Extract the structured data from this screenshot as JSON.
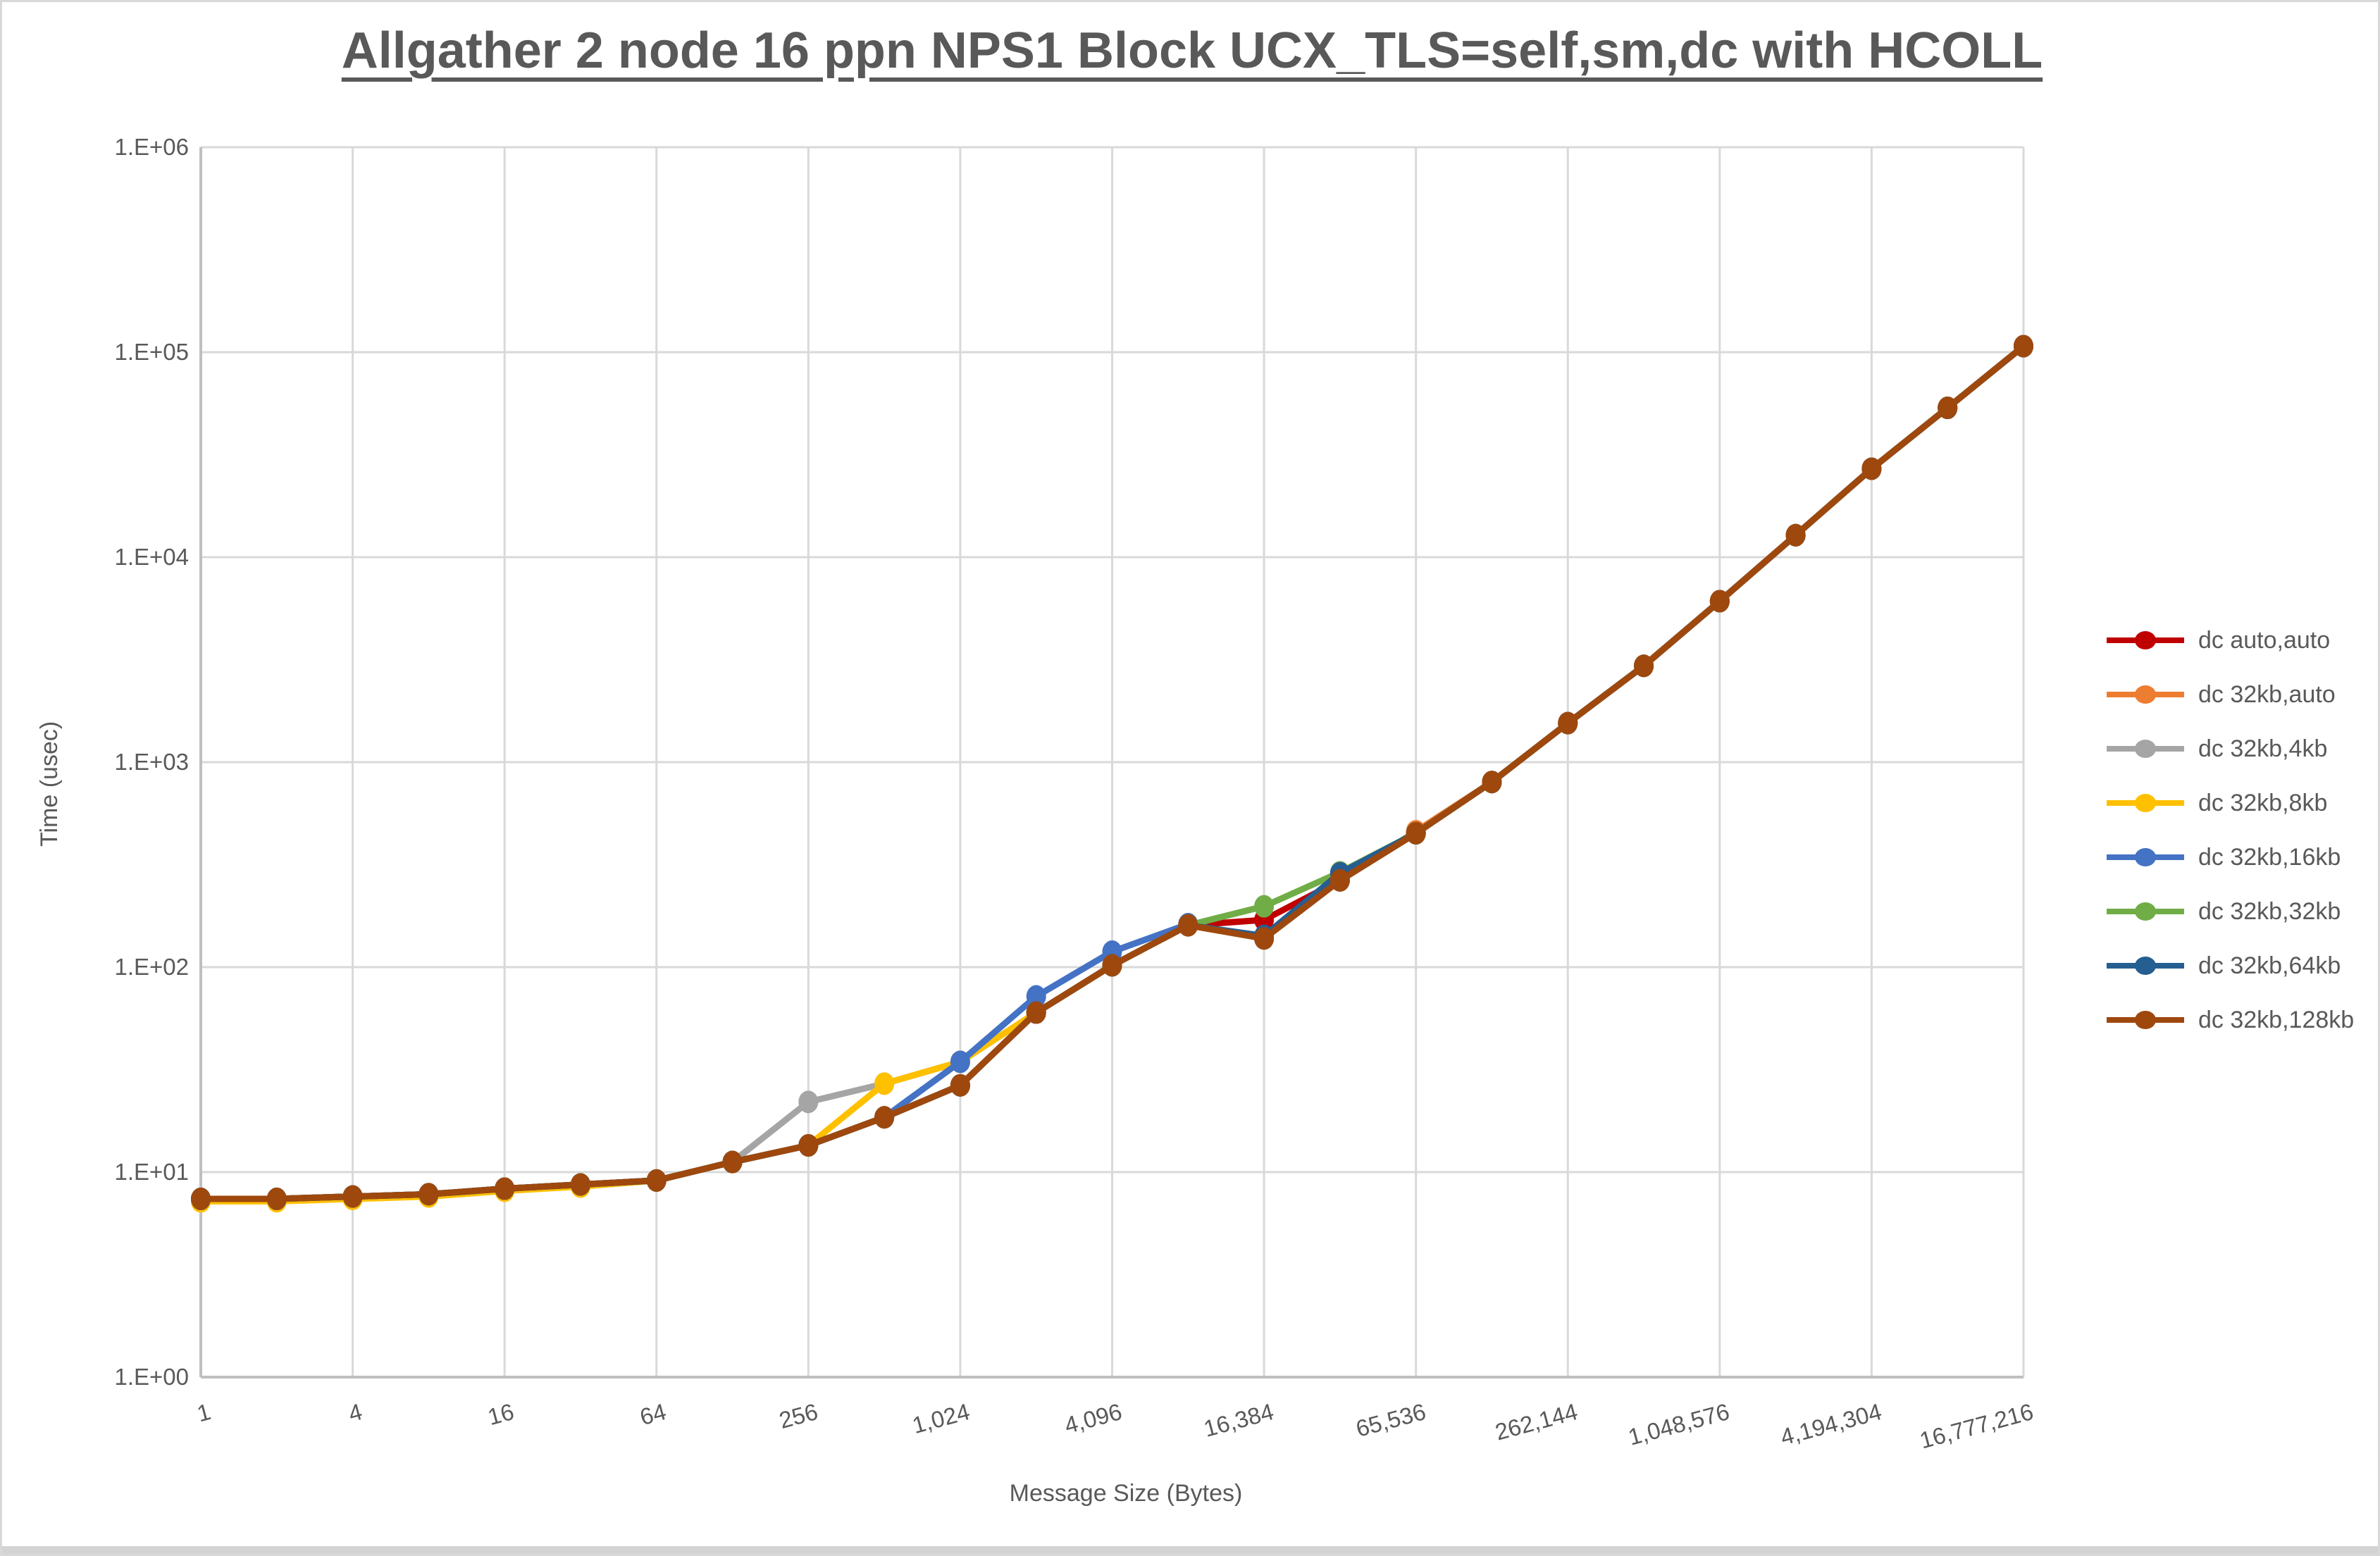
{
  "chart_data": {
    "type": "line",
    "title": "Allgather 2 node 16 ppn NPS1 Block UCX_TLS=self,sm,dc with HCOLL",
    "xlabel": "Message Size (Bytes)",
    "ylabel": "Time (usec)",
    "x_scale": "log2",
    "y_scale": "log10",
    "ylim": [
      1,
      1000000
    ],
    "grid": true,
    "legend_position": "right",
    "x": [
      1,
      2,
      4,
      8,
      16,
      32,
      64,
      128,
      256,
      512,
      1024,
      2048,
      4096,
      8192,
      16384,
      32768,
      65536,
      131072,
      262144,
      524288,
      1048576,
      2097152,
      4194304,
      8388608,
      16777216
    ],
    "x_tick_labels": [
      "1",
      "4",
      "16",
      "64",
      "256",
      "1,024",
      "4,096",
      "16,384",
      "65,536",
      "262,144",
      "1,048,576",
      "4,194,304",
      "16,777,216"
    ],
    "y_tick_labels": [
      "1.E+00",
      "1.E+01",
      "1.E+02",
      "1.E+03",
      "1.E+04",
      "1.E+05",
      "1.E+06"
    ],
    "series": [
      {
        "name": "dc auto,auto",
        "color": "#C00000",
        "values": [
          7.4,
          7.4,
          7.6,
          7.8,
          8.3,
          8.7,
          9.1,
          11.2,
          13.5,
          18.5,
          26.5,
          60,
          102,
          160,
          170,
          265,
          450,
          800,
          1550,
          2950,
          6100,
          12800,
          27000,
          53500,
          107000
        ]
      },
      {
        "name": "dc 32kb,auto",
        "color": "#ED7D31",
        "values": [
          7.4,
          7.4,
          7.6,
          7.8,
          8.3,
          8.7,
          9.1,
          11.2,
          13.5,
          18.5,
          26.5,
          60,
          102,
          160,
          138,
          265,
          460,
          800,
          1550,
          2950,
          6100,
          12800,
          27000,
          53500,
          107000
        ]
      },
      {
        "name": "dc 32kb,4kb",
        "color": "#A5A5A5",
        "values": [
          7.4,
          7.4,
          7.6,
          7.8,
          8.3,
          8.7,
          9.1,
          11.2,
          22,
          27,
          34.5,
          60,
          102,
          160,
          138,
          265,
          450,
          800,
          1550,
          2950,
          6100,
          12800,
          27000,
          53500,
          107000
        ]
      },
      {
        "name": "dc 32kb,8kb",
        "color": "#FFC000",
        "values": [
          7.2,
          7.2,
          7.4,
          7.6,
          8.1,
          8.5,
          9.1,
          11.2,
          13.5,
          27,
          34.5,
          60,
          102,
          160,
          138,
          265,
          450,
          800,
          1550,
          2950,
          6100,
          12800,
          27000,
          53500,
          107000
        ]
      },
      {
        "name": "dc 32kb,16kb",
        "color": "#4472C4",
        "values": [
          7.4,
          7.4,
          7.6,
          7.8,
          8.3,
          8.7,
          9.1,
          11.2,
          13.5,
          18.5,
          34.5,
          72,
          119,
          162,
          138,
          265,
          450,
          800,
          1550,
          2950,
          6100,
          12800,
          27000,
          53500,
          107000
        ]
      },
      {
        "name": "dc 32kb,32kb",
        "color": "#70AD47",
        "values": [
          7.4,
          7.4,
          7.6,
          7.8,
          8.3,
          8.7,
          9.1,
          11.2,
          13.5,
          18.5,
          26.5,
          60,
          102,
          160,
          198,
          290,
          450,
          800,
          1550,
          2950,
          6100,
          12800,
          27000,
          53500,
          107000
        ]
      },
      {
        "name": "dc 32kb,64kb",
        "color": "#255E91",
        "values": [
          7.4,
          7.4,
          7.6,
          7.8,
          8.3,
          8.7,
          9.1,
          11.2,
          13.5,
          18.5,
          26.5,
          60,
          102,
          160,
          142,
          287,
          450,
          800,
          1550,
          2950,
          6100,
          12800,
          27000,
          53500,
          107000
        ]
      },
      {
        "name": "dc 32kb,128kb",
        "color": "#9E480E",
        "values": [
          7.4,
          7.4,
          7.6,
          7.8,
          8.3,
          8.7,
          9.1,
          11.2,
          13.5,
          18.5,
          26.5,
          60,
          102,
          160,
          138,
          265,
          450,
          800,
          1550,
          2950,
          6100,
          12800,
          27000,
          53500,
          107000
        ]
      }
    ]
  },
  "colors": {
    "text": "#595959",
    "gridline": "#D9D9D9",
    "axis_line": "#BFBFBF",
    "bottom_strip": "#D3D3D3"
  }
}
